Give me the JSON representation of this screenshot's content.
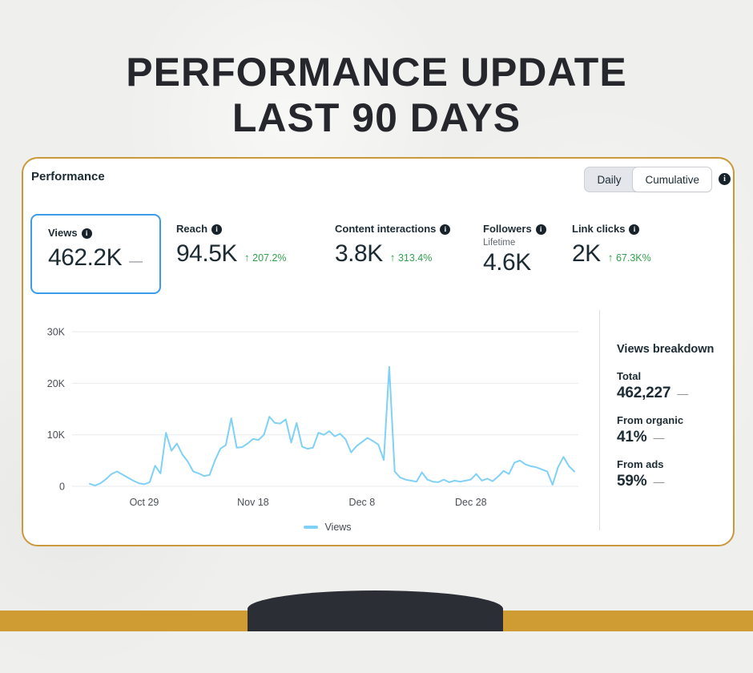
{
  "poster": {
    "title_line1": "PERFORMANCE UPDATE",
    "title_line2": "LAST 90 DAYS"
  },
  "card": {
    "header": "Performance",
    "toggle": {
      "daily": "Daily",
      "cumulative": "Cumulative"
    },
    "info_glyph": "i",
    "metrics": [
      {
        "label": "Views",
        "value": "462.2K",
        "change": "—",
        "selected": true
      },
      {
        "label": "Reach",
        "value": "94.5K",
        "arrow": "↑",
        "change": "207.2%"
      },
      {
        "label": "Content interactions",
        "value": "3.8K",
        "arrow": "↑",
        "change": "313.4%"
      },
      {
        "label": "Followers",
        "sub": "Lifetime",
        "value": "4.6K"
      },
      {
        "label": "Link clicks",
        "value": "2K",
        "arrow": "↑",
        "change": "67.3K%"
      }
    ],
    "breakdown": {
      "title": "Views breakdown",
      "items": [
        {
          "label": "Total",
          "value": "462,227",
          "dash": "—"
        },
        {
          "label": "From organic",
          "value": "41%",
          "dash": "—"
        },
        {
          "label": "From ads",
          "value": "59%",
          "dash": "—"
        }
      ]
    }
  },
  "chart_data": {
    "type": "line",
    "title": "",
    "xlabel": "",
    "ylabel": "",
    "ylim": [
      0,
      30000
    ],
    "grid": true,
    "legend_position": "bottom",
    "y_ticks": [
      "0",
      "10K",
      "20K",
      "30K"
    ],
    "y_tick_values": [
      0,
      10000,
      20000,
      30000
    ],
    "x_tick_labels": [
      "Oct 29",
      "Nov 18",
      "Dec 8",
      "Dec 28"
    ],
    "x_tick_indices": [
      10,
      30,
      50,
      70
    ],
    "line_color": "#7fd1f7",
    "series": [
      {
        "name": "Views",
        "values": [
          500,
          150,
          600,
          1400,
          2400,
          2900,
          2300,
          1700,
          1100,
          600,
          400,
          800,
          4000,
          2500,
          10400,
          6900,
          8300,
          6200,
          4800,
          2900,
          2500,
          2000,
          2200,
          5000,
          7300,
          8000,
          13200,
          7500,
          7600,
          8300,
          9200,
          9000,
          10000,
          13500,
          12300,
          12200,
          13000,
          8500,
          12300,
          7700,
          7300,
          7500,
          10400,
          10000,
          10700,
          9700,
          10200,
          9100,
          6600,
          7800,
          8600,
          9400,
          8800,
          8100,
          5100,
          23200,
          2900,
          1700,
          1300,
          1100,
          900,
          2700,
          1300,
          900,
          800,
          1300,
          800,
          1100,
          900,
          1100,
          1300,
          2400,
          1100,
          1500,
          1000,
          1900,
          3000,
          2400,
          4600,
          5000,
          4300,
          3900,
          3700,
          3300,
          2900,
          300,
          3700,
          5700,
          3900,
          2900
        ]
      }
    ]
  },
  "colors": {
    "gold": "#cf9b33",
    "card_border_gold": "#c9993b",
    "selected_tile_blue": "#3d9be9",
    "line_blue": "#7fd1f7",
    "positive_green": "#31a24c",
    "text_dark": "#1c2b33",
    "footer_dark": "#2b2e35"
  }
}
